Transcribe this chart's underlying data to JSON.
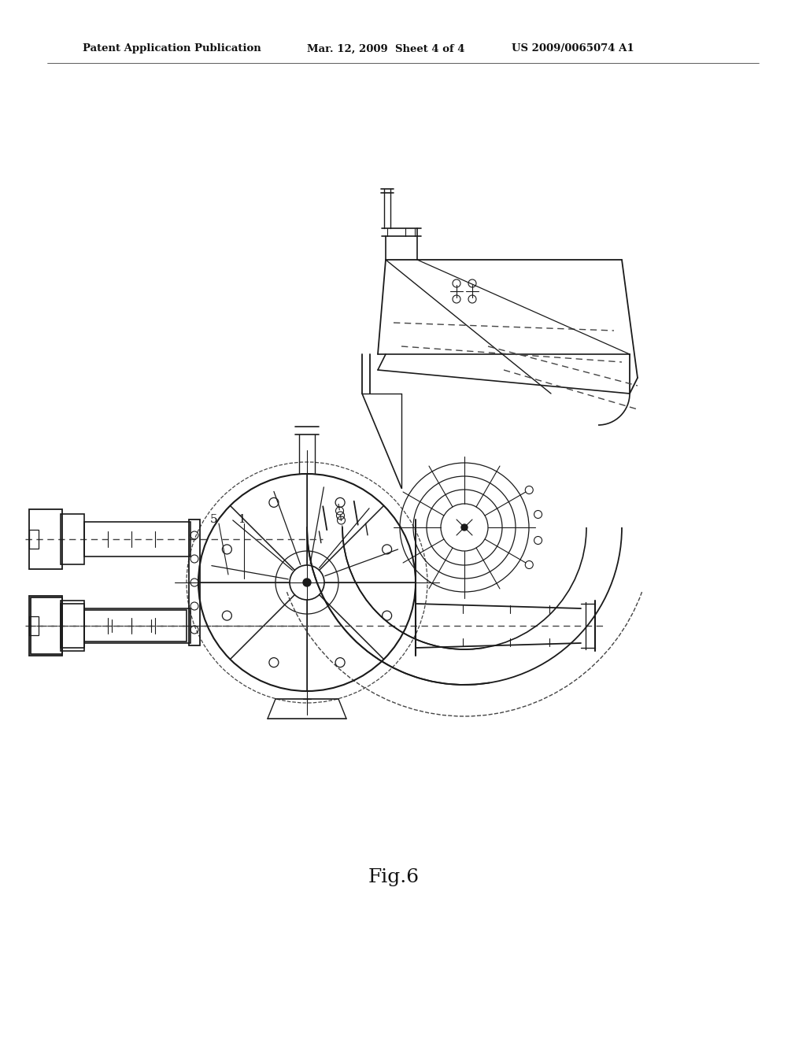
{
  "bg_color": "#ffffff",
  "header_left": "Patent Application Publication",
  "header_mid": "Mar. 12, 2009  Sheet 4 of 4",
  "header_right": "US 2009/0065074 A1",
  "fig_label": "Fig.6",
  "line_color": "#1a1a1a",
  "dashed_color": "#444444"
}
